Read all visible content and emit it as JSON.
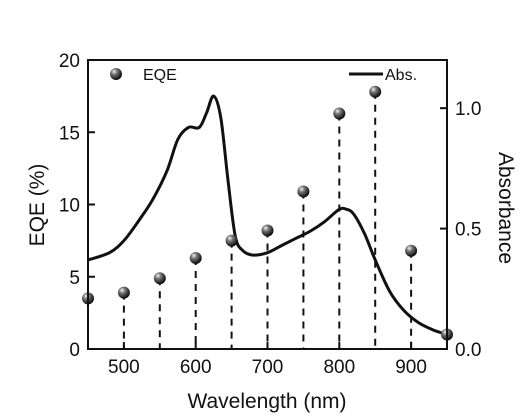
{
  "chart_data": {
    "type": "scatter",
    "xlabel": "Wavelength (nm)",
    "ylabel": "EQE (%)",
    "y2label": "Absorbance",
    "xlim": [
      450,
      950
    ],
    "ylim": [
      0,
      20
    ],
    "y2lim": [
      0,
      1.2
    ],
    "xticks": [
      500,
      600,
      700,
      800,
      900
    ],
    "xtick_labels": [
      "500",
      "600",
      "700",
      "800",
      "900"
    ],
    "yticks": [
      0,
      5,
      10,
      15,
      20
    ],
    "ytick_labels": [
      "0",
      "5",
      "10",
      "15",
      "20"
    ],
    "y2ticks": [
      0,
      0.5,
      1.0
    ],
    "y2tick_labels": [
      "0.0",
      "0.5",
      "1.0"
    ],
    "legend": [
      {
        "label": "EQE",
        "marker": "sphere",
        "placement": "top-left"
      },
      {
        "label": "Abs.",
        "marker": "line",
        "placement": "top-right"
      }
    ],
    "series": [
      {
        "name": "EQE",
        "axis": "left",
        "kind": "scatter-with-drop-lines",
        "x": [
          450,
          500,
          550,
          600,
          650,
          700,
          750,
          800,
          850,
          900,
          950
        ],
        "y": [
          3.5,
          3.9,
          4.9,
          6.3,
          7.5,
          8.2,
          10.9,
          16.3,
          17.8,
          6.8,
          1.0
        ]
      },
      {
        "name": "Abs.",
        "axis": "right",
        "kind": "line",
        "x": [
          450,
          480,
          500,
          520,
          540,
          560,
          575,
          590,
          605,
          615,
          625,
          635,
          645,
          655,
          665,
          680,
          700,
          720,
          740,
          760,
          780,
          800,
          810,
          820,
          835,
          850,
          870,
          890,
          910,
          930,
          950
        ],
        "y": [
          0.37,
          0.4,
          0.45,
          0.53,
          0.62,
          0.74,
          0.87,
          0.92,
          0.92,
          0.98,
          1.05,
          0.96,
          0.7,
          0.47,
          0.41,
          0.39,
          0.4,
          0.43,
          0.46,
          0.49,
          0.53,
          0.58,
          0.58,
          0.56,
          0.48,
          0.37,
          0.24,
          0.16,
          0.11,
          0.08,
          0.06
        ]
      }
    ],
    "grid": false
  },
  "colors": {
    "axis": "#111111",
    "line": "#111111",
    "marker": "#1a1a1a",
    "dropline": "#111111"
  }
}
